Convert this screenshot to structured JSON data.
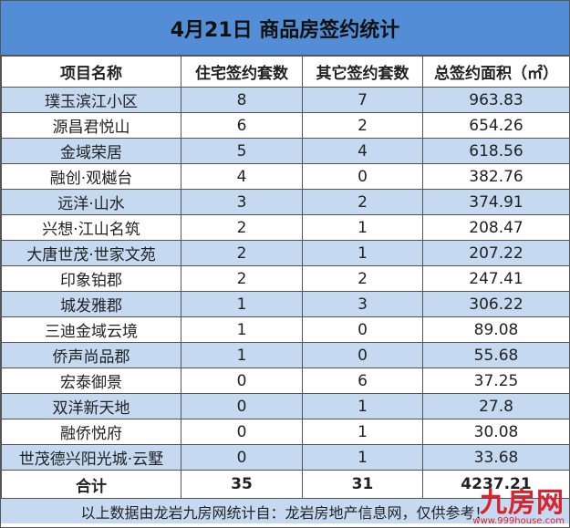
{
  "title": "4月21日 商品房签约统计",
  "headers": [
    "项目名称",
    "住宅签约套数",
    "其它签约套数",
    "总签约面积（㎡）"
  ],
  "rows": [
    [
      "璞玉滨江小区",
      "8",
      "7",
      "963.83"
    ],
    [
      "源昌君悦山",
      "6",
      "2",
      "654.26"
    ],
    [
      "金域荣居",
      "5",
      "4",
      "618.56"
    ],
    [
      "融创·观樾台",
      "4",
      "0",
      "382.76"
    ],
    [
      "远洋·山水",
      "3",
      "2",
      "374.91"
    ],
    [
      "兴想·江山名筑",
      "2",
      "1",
      "208.47"
    ],
    [
      "大唐世茂·世家文苑",
      "2",
      "1",
      "207.22"
    ],
    [
      "印象铂郡",
      "2",
      "2",
      "247.41"
    ],
    [
      "城发雅郡",
      "1",
      "3",
      "306.22"
    ],
    [
      "三迪金域云境",
      "1",
      "0",
      "89.08"
    ],
    [
      "侨声尚品郡",
      "1",
      "0",
      "55.68"
    ],
    [
      "宏泰御景",
      "0",
      "6",
      "37.25"
    ],
    [
      "双洋新天地",
      "0",
      "1",
      "27.8"
    ],
    [
      "融侨悦府",
      "0",
      "1",
      "30.08"
    ],
    [
      "世茂德兴阳光城·云墅",
      "0",
      "1",
      "33.68"
    ]
  ],
  "total": [
    "合计",
    "35",
    "31",
    "4237.21"
  ],
  "footer": "以上数据由龙岩九房网统计自：龙岩房地产信息网，仅供参考！",
  "watermark": {
    "name": "九房网",
    "url": "www.999house.com"
  },
  "colors": {
    "title_bg": "#538dd5",
    "row_alt": "#c5d9f1",
    "watermark": "#d9232d"
  },
  "chart_data": {
    "type": "table",
    "title": "4月21日 商品房签约统计",
    "columns": [
      "项目名称",
      "住宅签约套数",
      "其它签约套数",
      "总签约面积（㎡）"
    ]
  }
}
